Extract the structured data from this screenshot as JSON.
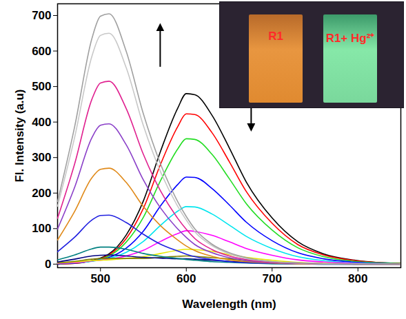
{
  "chart_data": {
    "type": "line",
    "x_label": "Wavelength (nm)",
    "y_label": "Fl. Intensity (a.u)",
    "annotations": [
      "R1",
      "R1+ Hg²⁺"
    ],
    "xlim": [
      450,
      850
    ],
    "ylim": [
      -10,
      733
    ],
    "xticks": [
      500,
      600,
      700,
      800
    ],
    "yticks": [
      0,
      100,
      200,
      300,
      400,
      500,
      600,
      700
    ],
    "x": [
      450,
      470,
      490,
      500,
      510,
      530,
      550,
      570,
      590,
      600,
      610,
      630,
      650,
      670,
      700,
      730,
      760,
      800,
      850
    ],
    "series": [
      {
        "color": "#000000",
        "values": [
          0,
          2,
          10,
          17,
          29,
          82,
          178,
          318,
          439,
          480,
          477,
          419,
          328,
          231,
          130,
          63,
          29,
          10,
          2
        ]
      },
      {
        "color": "#ff0000",
        "values": [
          0,
          2,
          9,
          15,
          26,
          72,
          157,
          281,
          387,
          423,
          421,
          370,
          289,
          204,
          115,
          55,
          26,
          9,
          2
        ]
      },
      {
        "color": "#22dd22",
        "values": [
          1,
          3,
          9,
          14,
          23,
          62,
          132,
          235,
          324,
          353,
          351,
          309,
          241,
          170,
          96,
          46,
          21,
          7,
          2
        ]
      },
      {
        "color": "#0000ff",
        "values": [
          1,
          3,
          9,
          13,
          19,
          45,
          93,
          164,
          224,
          245,
          244,
          213,
          167,
          118,
          66,
          32,
          15,
          5,
          1
        ]
      },
      {
        "color": "#00e5ee",
        "values": [
          2,
          4,
          8,
          12,
          16,
          33,
          64,
          109,
          149,
          162,
          161,
          141,
          110,
          78,
          44,
          21,
          10,
          3,
          1
        ]
      },
      {
        "color": "#ff00ff",
        "values": [
          2,
          4,
          9,
          11,
          14,
          23,
          39,
          64,
          86,
          94,
          92,
          81,
          63,
          44,
          25,
          12,
          6,
          2,
          0
        ]
      },
      {
        "color": "#e8e800",
        "values": [
          3,
          6,
          10,
          11,
          12,
          16,
          21,
          30,
          39,
          42,
          41,
          36,
          27,
          19,
          11,
          5,
          2,
          1,
          0
        ]
      },
      {
        "color": "#808000",
        "values": [
          4,
          8,
          14,
          16,
          16,
          16,
          16,
          19,
          22,
          23,
          22,
          18,
          15,
          10,
          5,
          3,
          1,
          0,
          0
        ]
      },
      {
        "color": "#000080",
        "values": [
          6,
          14,
          23,
          25,
          26,
          23,
          19,
          17,
          15,
          15,
          14,
          11,
          8,
          6,
          3,
          1,
          1,
          0,
          0
        ]
      },
      {
        "color": "#008080",
        "values": [
          12,
          26,
          43,
          48,
          48,
          42,
          30,
          22,
          16,
          13,
          11,
          7,
          5,
          3,
          1,
          1,
          0,
          0,
          0
        ]
      },
      {
        "color": "#2020e0",
        "values": [
          35,
          76,
          124,
          137,
          138,
          117,
          84,
          56,
          37,
          28,
          21,
          13,
          7,
          4,
          2,
          1,
          0,
          0,
          0
        ]
      },
      {
        "color": "#e08a1a",
        "values": [
          68,
          149,
          243,
          267,
          270,
          230,
          162,
          108,
          68,
          51,
          38,
          22,
          12,
          7,
          3,
          1,
          1,
          0,
          0
        ]
      },
      {
        "color": "#8a3fc8",
        "values": [
          99,
          217,
          356,
          391,
          395,
          336,
          237,
          158,
          99,
          75,
          55,
          32,
          18,
          10,
          4,
          2,
          1,
          0,
          0
        ]
      },
      {
        "color": "#e0208f",
        "values": [
          129,
          283,
          464,
          510,
          515,
          438,
          309,
          206,
          129,
          98,
          72,
          41,
          23,
          13,
          5,
          3,
          1,
          0,
          0
        ]
      },
      {
        "color": "#c8c8c8",
        "values": [
          163,
          358,
          585,
          644,
          650,
          553,
          390,
          260,
          163,
          124,
          91,
          52,
          29,
          16,
          7,
          3,
          1,
          0,
          0
        ]
      },
      {
        "color": "#a0a0a0",
        "values": [
          176,
          388,
          635,
          698,
          705,
          599,
          423,
          282,
          176,
          134,
          99,
          56,
          32,
          18,
          7,
          4,
          1,
          0,
          0
        ]
      }
    ]
  }
}
